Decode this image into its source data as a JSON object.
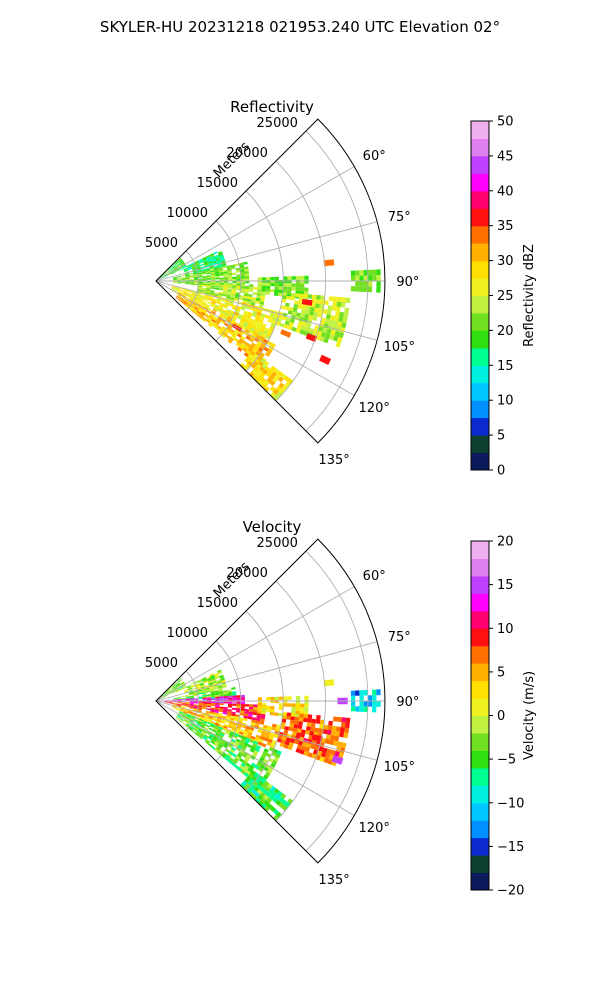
{
  "figure": {
    "suptitle": "SKYLER-HU  20231218  021953.240 UTC Elevation 02°"
  },
  "chart_data": [
    {
      "type": "heatmap",
      "title": "Reflectivity",
      "projection": "polar-sector",
      "theta_range_deg": [
        45,
        135
      ],
      "r_max_m": 27000,
      "r_ticks": [
        5000,
        10000,
        15000,
        20000,
        25000
      ],
      "r_tick_labels": [
        "5000",
        "10000",
        "15000",
        "20000",
        "25000"
      ],
      "r_axis_label": "Meters",
      "theta_ticks_deg": [
        60,
        75,
        90,
        105,
        120,
        135
      ],
      "theta_tick_labels": [
        "60°",
        "75°",
        "90°",
        "105°",
        "120°",
        "135°"
      ],
      "grid": true,
      "colorbar": {
        "label": "Reflectivity dBZ",
        "min": 0,
        "max": 50,
        "ticks": [
          0,
          5,
          10,
          15,
          20,
          25,
          30,
          35,
          40,
          45,
          50
        ],
        "tick_labels": [
          "0",
          "5",
          "10",
          "15",
          "20",
          "25",
          "30",
          "35",
          "40",
          "45",
          "50"
        ],
        "colormap": [
          {
            "v": 0,
            "c": "#0a1a5c"
          },
          {
            "v": 2.5,
            "c": "#0e4030"
          },
          {
            "v": 5,
            "c": "#0a2ad0"
          },
          {
            "v": 7.5,
            "c": "#0090ff"
          },
          {
            "v": 10,
            "c": "#00c8ff"
          },
          {
            "v": 12.5,
            "c": "#00f0e0"
          },
          {
            "v": 15,
            "c": "#00ff90"
          },
          {
            "v": 17.5,
            "c": "#30e010"
          },
          {
            "v": 20,
            "c": "#70e020"
          },
          {
            "v": 22.5,
            "c": "#c0f040"
          },
          {
            "v": 25,
            "c": "#f0f020"
          },
          {
            "v": 27.5,
            "c": "#ffe000"
          },
          {
            "v": 30,
            "c": "#ffb000"
          },
          {
            "v": 32.5,
            "c": "#ff7000"
          },
          {
            "v": 35,
            "c": "#ff1010"
          },
          {
            "v": 37.5,
            "c": "#ff0070"
          },
          {
            "v": 40,
            "c": "#ff00ff"
          },
          {
            "v": 42.5,
            "c": "#c040ff"
          },
          {
            "v": 45,
            "c": "#e080f0"
          },
          {
            "v": 47.5,
            "c": "#f0b0f0"
          },
          {
            "v": 50,
            "c": "#fbeafb"
          }
        ]
      },
      "field": {
        "field_seed": 11,
        "regions": [
          {
            "theta": [
              47,
              66
            ],
            "r": [
              0,
              4000
            ],
            "value": 19
          },
          {
            "theta": [
              64,
              78
            ],
            "r": [
              3500,
              8500
            ],
            "value": 17
          },
          {
            "theta": [
              78,
              95
            ],
            "r": [
              2000,
              11000
            ],
            "value": 21
          },
          {
            "theta": [
              92,
              104
            ],
            "r": [
              5000,
              13000
            ],
            "value": 23
          },
          {
            "theta": [
              104,
              118
            ],
            "r": [
              2000,
              15000
            ],
            "value": 27
          },
          {
            "theta": [
              118,
              130
            ],
            "r": [
              3000,
              16000
            ],
            "value": 30
          },
          {
            "theta": [
              126,
              134
            ],
            "r": [
              14000,
              20000
            ],
            "value": 28
          },
          {
            "theta": [
              88,
              96
            ],
            "r": [
              12000,
              18000
            ],
            "value": 21
          },
          {
            "theta": [
              95,
              110
            ],
            "r": [
              15000,
              23000
            ],
            "value": 24
          },
          {
            "theta": [
              87,
              93
            ],
            "r": [
              23000,
              26500
            ],
            "value": 21
          }
        ],
        "cells": [
          {
            "theta": 110,
            "r": 19500,
            "value": 36
          },
          {
            "theta": 115,
            "r": 22000,
            "value": 37
          },
          {
            "theta": 98,
            "r": 18000,
            "value": 35
          },
          {
            "theta": 84,
            "r": 20500,
            "value": 34
          },
          {
            "theta": 120,
            "r": 11000,
            "value": 35
          },
          {
            "theta": 112,
            "r": 16500,
            "value": 34
          }
        ]
      }
    },
    {
      "type": "heatmap",
      "title": "Velocity",
      "projection": "polar-sector",
      "theta_range_deg": [
        45,
        135
      ],
      "r_max_m": 27000,
      "r_ticks": [
        5000,
        10000,
        15000,
        20000,
        25000
      ],
      "r_tick_labels": [
        "5000",
        "10000",
        "15000",
        "20000",
        "25000"
      ],
      "r_axis_label": "Meters",
      "theta_ticks_deg": [
        60,
        75,
        90,
        105,
        120,
        135
      ],
      "theta_tick_labels": [
        "60°",
        "75°",
        "90°",
        "105°",
        "120°",
        "135°"
      ],
      "grid": true,
      "colorbar": {
        "label": "Velocity (m/s)",
        "min": -20,
        "max": 20,
        "ticks": [
          -20,
          -15,
          -10,
          -5,
          0,
          5,
          10,
          15,
          20
        ],
        "tick_labels": [
          "−20",
          "−15",
          "−10",
          "−5",
          "0",
          "5",
          "10",
          "15",
          "20"
        ],
        "colormap": [
          {
            "v": -20,
            "c": "#0a1a5c"
          },
          {
            "v": -18,
            "c": "#0e4030"
          },
          {
            "v": -16,
            "c": "#0a2ad0"
          },
          {
            "v": -14,
            "c": "#0090ff"
          },
          {
            "v": -12,
            "c": "#00c8ff"
          },
          {
            "v": -10,
            "c": "#00f0e0"
          },
          {
            "v": -8,
            "c": "#00ff90"
          },
          {
            "v": -6,
            "c": "#30e010"
          },
          {
            "v": -4,
            "c": "#70e020"
          },
          {
            "v": -2,
            "c": "#c0f040"
          },
          {
            "v": 0,
            "c": "#f0f020"
          },
          {
            "v": 2,
            "c": "#ffe000"
          },
          {
            "v": 4,
            "c": "#ffb000"
          },
          {
            "v": 6,
            "c": "#ff7000"
          },
          {
            "v": 8,
            "c": "#ff1010"
          },
          {
            "v": 10,
            "c": "#ff0070"
          },
          {
            "v": 12,
            "c": "#ff00ff"
          },
          {
            "v": 14,
            "c": "#c040ff"
          },
          {
            "v": 16,
            "c": "#e080f0"
          },
          {
            "v": 18,
            "c": "#f0b0f0"
          },
          {
            "v": 20,
            "c": "#fbeafb"
          }
        ]
      },
      "field": {
        "field_seed": 23,
        "regions": [
          {
            "theta": [
              47,
              66
            ],
            "r": [
              0,
              4000
            ],
            "value": -3
          },
          {
            "theta": [
              64,
              80
            ],
            "r": [
              3500,
              8500
            ],
            "value": -1
          },
          {
            "theta": [
              80,
              87
            ],
            "r": [
              2000,
              9500
            ],
            "value": -4
          },
          {
            "theta": [
              86,
              92
            ],
            "r": [
              1000,
              10500
            ],
            "value": 13
          },
          {
            "theta": [
              92,
              101
            ],
            "r": [
              1000,
              13000
            ],
            "value": 9
          },
          {
            "theta": [
              101,
              112
            ],
            "r": [
              2000,
              15000
            ],
            "value": 4
          },
          {
            "theta": [
              112,
              130
            ],
            "r": [
              3000,
              16000
            ],
            "value": -4
          },
          {
            "theta": [
              126,
              134
            ],
            "r": [
              14000,
              20000
            ],
            "value": -5
          },
          {
            "theta": [
              88,
              96
            ],
            "r": [
              12000,
              18000
            ],
            "value": 2
          },
          {
            "theta": [
              95,
              110
            ],
            "r": [
              15000,
              23000
            ],
            "value": 7
          },
          {
            "theta": [
              87,
              93
            ],
            "r": [
              23000,
              26500
            ],
            "value": -11
          }
        ],
        "cells": [
          {
            "theta": 103,
            "r": 19500,
            "value": 9
          },
          {
            "theta": 108,
            "r": 22500,
            "value": 14
          },
          {
            "theta": 84,
            "r": 20500,
            "value": 1
          },
          {
            "theta": 90,
            "r": 22000,
            "value": 15
          }
        ]
      }
    }
  ]
}
